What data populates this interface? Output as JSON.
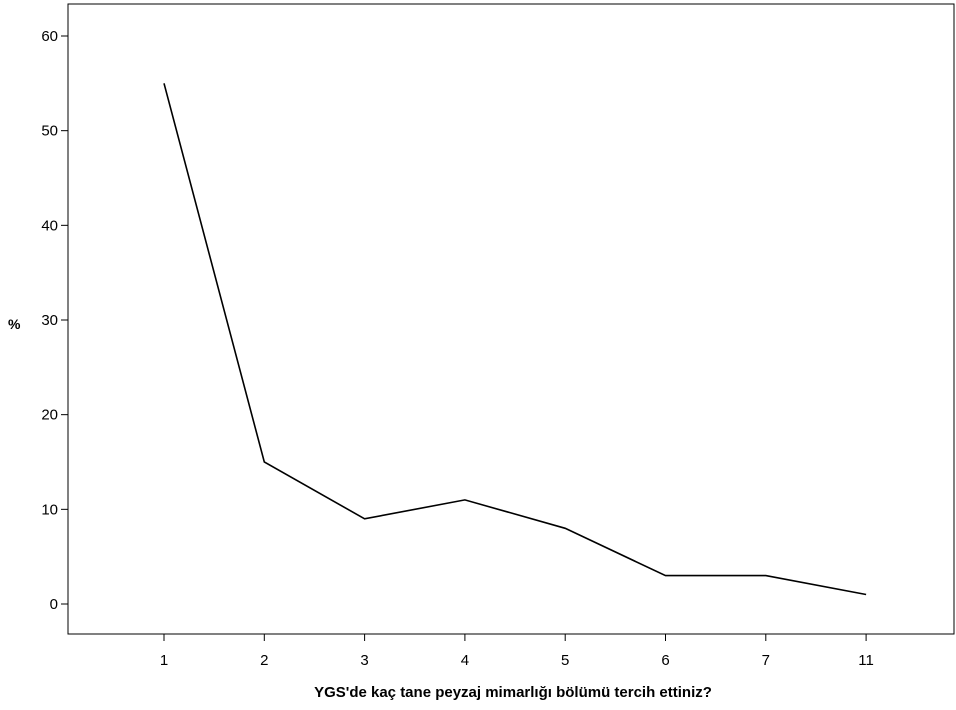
{
  "chart_data": {
    "type": "line",
    "title": "",
    "xlabel": "YGS'de kaç tane peyzaj mimarlığı bölümü tercih ettiniz?",
    "ylabel": "%",
    "categories": [
      "1",
      "2",
      "3",
      "4",
      "5",
      "6",
      "7",
      "11"
    ],
    "values": [
      55,
      15,
      9,
      11,
      8,
      3,
      3,
      1
    ],
    "ylim": [
      0,
      60
    ],
    "yticks": [
      "0",
      "10",
      "20",
      "30",
      "40",
      "50",
      "60"
    ],
    "grid": false,
    "line_color": "#000000"
  }
}
